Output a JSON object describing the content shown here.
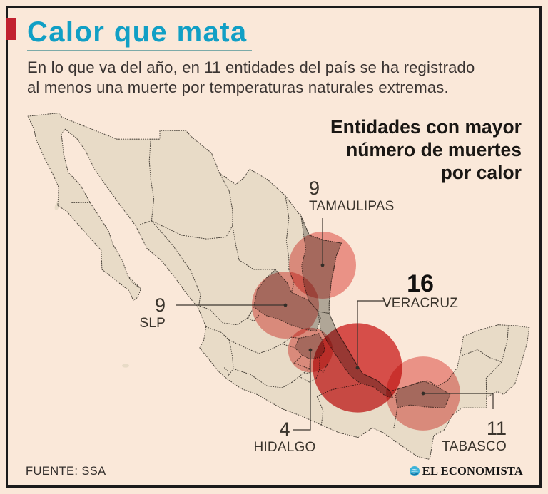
{
  "colors": {
    "background": "#fae8d9",
    "frame": "#1b1b1b",
    "accent_red": "#c1212f",
    "title_cyan": "#119fc5",
    "underline_teal": "#7caaa8",
    "text_dark": "#393331",
    "header_dark": "#1a1714",
    "map_fill": "#e8dbc7",
    "highlight_state_fill": "#b0a697",
    "bubble_red": "#e4635c",
    "bubble_emphasis_red": "#d22a2a",
    "logo_cyan": "#3eb3d8"
  },
  "title": "Calor que mata",
  "intro": {
    "line1": "En lo que va del año, en 11 entidades del país se ha registrado",
    "line2": "al menos una muerte por temperaturas naturales extremas."
  },
  "legend": {
    "line1": "Entidades con mayor",
    "line2": "número de muertes",
    "line3": "por calor"
  },
  "footer": {
    "source": "FUENTE: SSA",
    "brand": "EL ECONOMISTA"
  },
  "chart_data": {
    "type": "bubble-map",
    "region": "México",
    "title": "Calor que mata",
    "note": "En lo que va del año, en 11 entidades del país se ha registrado al menos una muerte por temperaturas naturales extremas.",
    "legend_title": "Entidades con mayor número de muertes por calor",
    "unit": "muertes por calor",
    "source": "SSA",
    "points": [
      {
        "state": "Tamaulipas",
        "label": "TAMAULIPAS",
        "value": 9,
        "emphasis": false
      },
      {
        "state": "San Luis Potosí",
        "label": "SLP",
        "value": 9,
        "emphasis": false
      },
      {
        "state": "Veracruz",
        "label": "VERACRUZ",
        "value": 16,
        "emphasis": true
      },
      {
        "state": "Hidalgo",
        "label": "HIDALGO",
        "value": 4,
        "emphasis": false
      },
      {
        "state": "Tabasco",
        "label": "TABASCO",
        "value": 11,
        "emphasis": false
      }
    ]
  }
}
